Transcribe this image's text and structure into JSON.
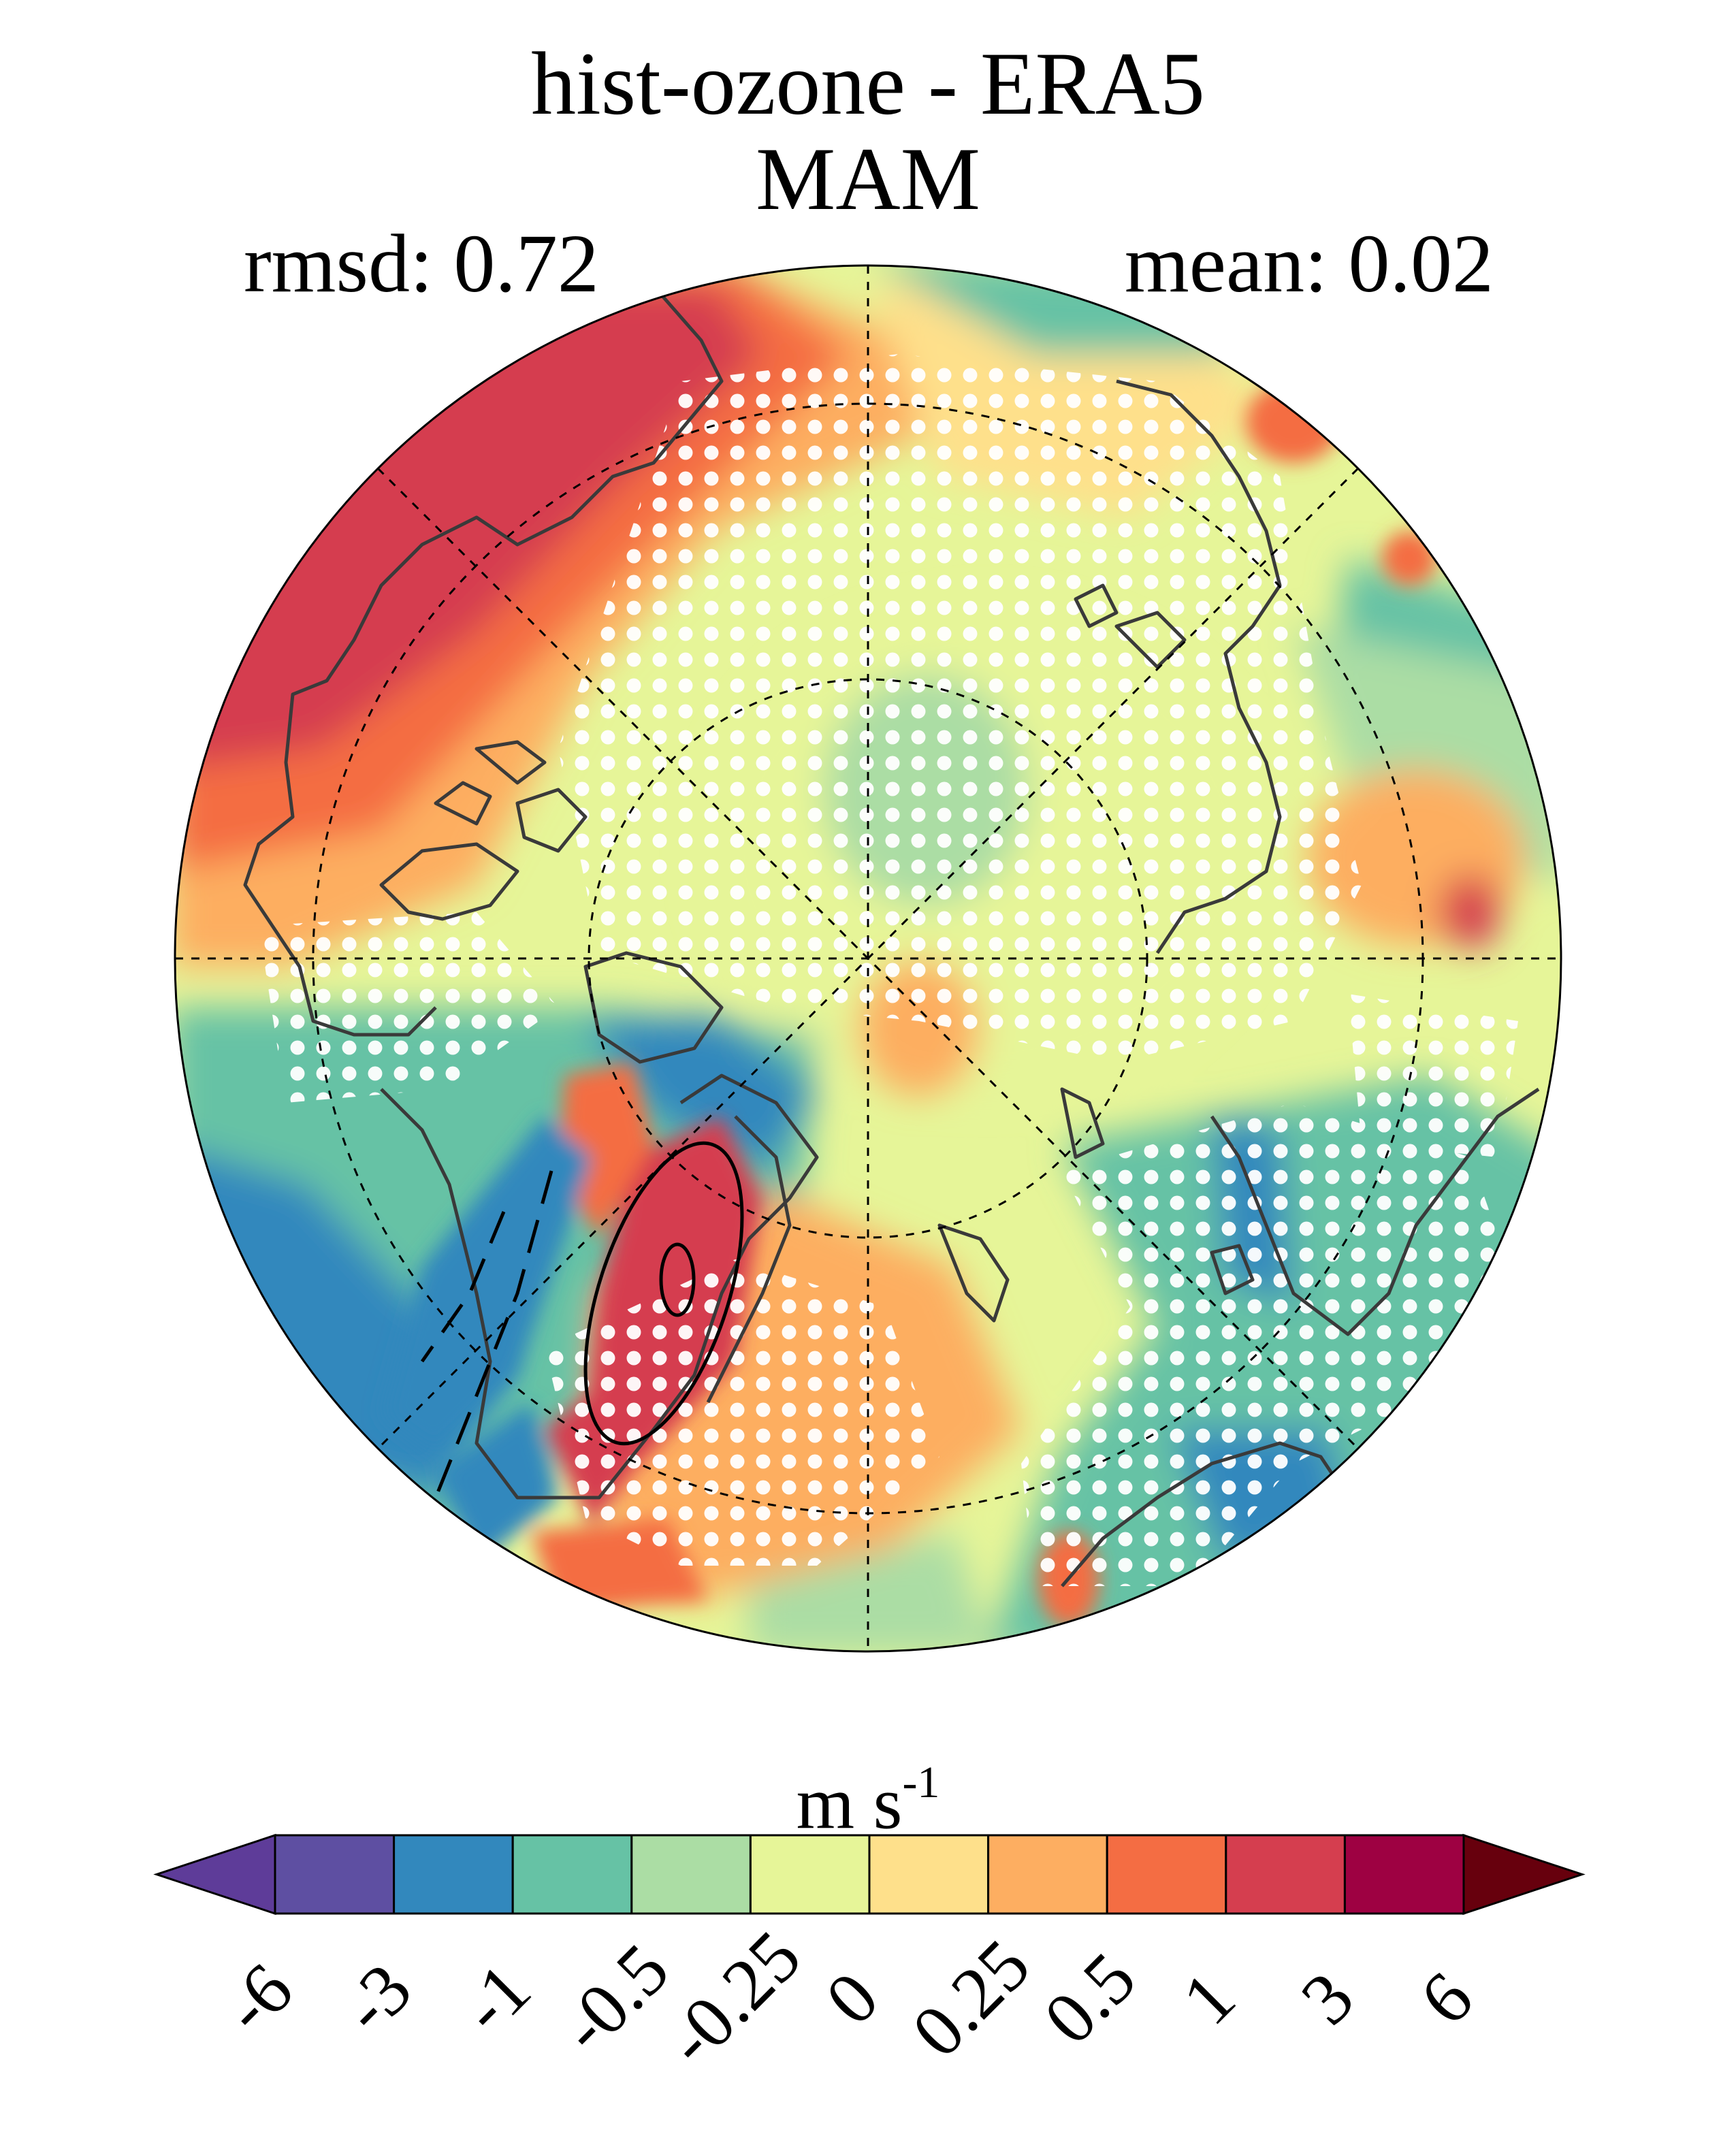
{
  "header": {
    "title_line1": "hist-ozone - ERA5",
    "title_line2": "MAM",
    "rmsd_label": "rmsd: 0.72",
    "mean_label": "mean: 0.02"
  },
  "map": {
    "projection": "north-polar-stereographic",
    "gridlines": "dashed",
    "stippling": "white dots"
  },
  "colorbar": {
    "units": "m s",
    "units_superscript": "-1",
    "tick_labels": [
      "-6",
      "-3",
      "-1",
      "-0.5",
      "-0.25",
      "0",
      "0.25",
      "0.5",
      "1",
      "3",
      "6"
    ],
    "under_color": "#5e3c99",
    "over_color": "#67000d",
    "colors": [
      "#5e4fa2",
      "#3288bd",
      "#66c2a5",
      "#abdda4",
      "#e6f598",
      "#fee08b",
      "#fdae61",
      "#f46d43",
      "#d53e4f",
      "#9e0142"
    ]
  }
}
